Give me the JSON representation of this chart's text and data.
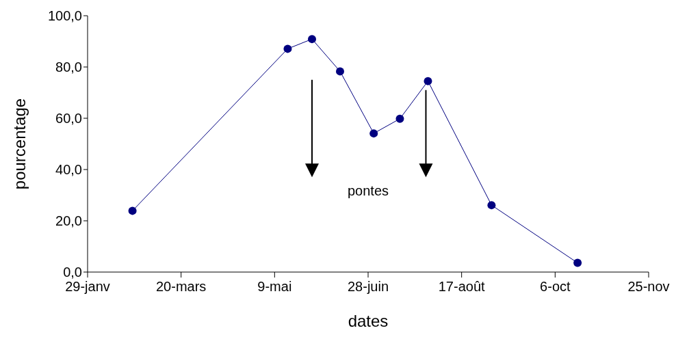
{
  "chart_data": {
    "type": "line",
    "xlabel": "dates",
    "ylabel": "pourcentage",
    "annotations": [
      "pontes"
    ],
    "x": [
      "--02-22",
      "--05-16",
      "--05-29",
      "--06-13",
      "--07-01",
      "--07-15",
      "--07-30",
      "--09-02",
      "--10-18"
    ],
    "series": [
      {
        "color": "#000080",
        "values": [
          23.9,
          87.1,
          90.9,
          78.3,
          54.1,
          59.8,
          74.5,
          26.1,
          3.6
        ]
      }
    ],
    "xlim": [
      "--01-29",
      "--11-25"
    ],
    "xticks": [
      {
        "value": "--01-29",
        "label": "29-janv"
      },
      {
        "value": "--03-20",
        "label": "20-mars"
      },
      {
        "value": "--05-09",
        "label": "9-mai"
      },
      {
        "value": "--06-28",
        "label": "28-juin"
      },
      {
        "value": "--08-17",
        "label": "17-août"
      },
      {
        "value": "--10-06",
        "label": "6-oct"
      },
      {
        "value": "--11-25",
        "label": "25-nov"
      }
    ],
    "ylim": [
      0,
      100
    ],
    "yticks": [
      {
        "value": 0,
        "label": "0,0"
      },
      {
        "value": 20,
        "label": "20,0"
      },
      {
        "value": 40,
        "label": "40,0"
      },
      {
        "value": 60,
        "label": "60,0"
      },
      {
        "value": 80,
        "label": "80,0"
      },
      {
        "value": 100,
        "label": "100,0"
      }
    ],
    "grid": false,
    "legend": false,
    "marker": "circle",
    "line_style": "solid"
  }
}
